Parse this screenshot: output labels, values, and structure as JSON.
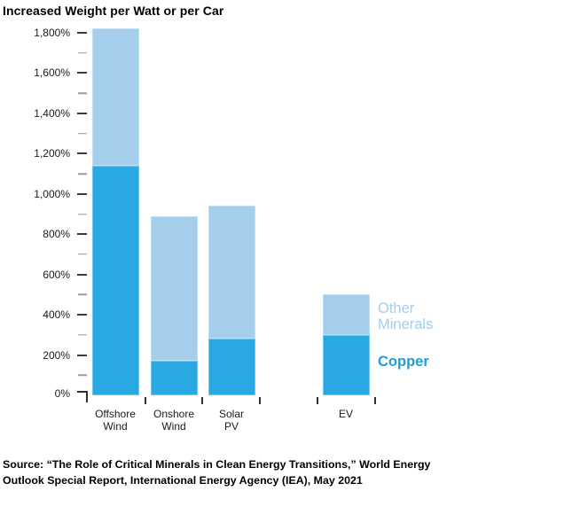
{
  "title": "Increased Weight per Watt or per Car",
  "legend": {
    "other_label": "Other Minerals",
    "copper_label": "Copper"
  },
  "source": {
    "line1": "Source: “The Role of Critical Minerals in Clean Energy Transitions,” World Energy",
    "line2": "Outlook Special Report, International Energy Agency (IEA), May 2021"
  },
  "colors": {
    "copper": "#29A9E1",
    "other": "#A4CEEC",
    "copper_text": "#1E9ED9",
    "other_text": "#A4CEEC",
    "text": "#1A1A1A"
  },
  "chart_data": {
    "type": "bar",
    "stacked": true,
    "title": "Increased Weight per Watt or per Car",
    "categories": [
      "Offshore Wind",
      "Onshore Wind",
      "Solar PV",
      "EV"
    ],
    "label_lines": [
      [
        "Offshore",
        "Wind"
      ],
      [
        "Onshore",
        "Wind"
      ],
      [
        "Solar",
        "PV"
      ],
      [
        "EV"
      ]
    ],
    "series": [
      {
        "name": "Copper",
        "values": [
          1140,
          170,
          280,
          300
        ]
      },
      {
        "name": "Other Minerals",
        "values": [
          680,
          720,
          660,
          200
        ]
      }
    ],
    "totals": [
      1820,
      890,
      940,
      500
    ],
    "xlabel": "",
    "ylabel": "",
    "y_unit": "%",
    "ylim": [
      0,
      1800
    ],
    "y_major_step": 200,
    "y_minor_step": 100,
    "y_tick_labels": [
      "0%",
      "200%",
      "400%",
      "600%",
      "800%",
      "1,000%",
      "1,200%",
      "1,400%",
      "1,600%",
      "1,800%"
    ],
    "grid": false,
    "legend_position": "right-of-EV-bar",
    "gap_slot_between": [
      "Solar PV",
      "EV"
    ]
  }
}
